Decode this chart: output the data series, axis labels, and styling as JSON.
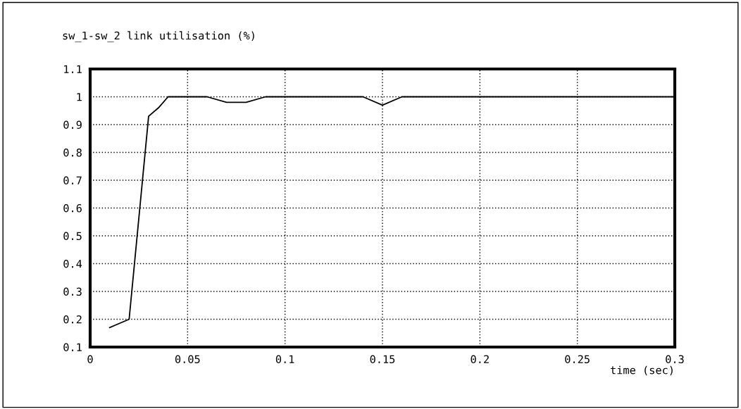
{
  "chart_data": {
    "type": "line",
    "title": "sw_1-sw_2 link utilisation (%)",
    "xlabel": "time (sec)",
    "x": [
      0.01,
      0.02,
      0.03,
      0.035,
      0.04,
      0.06,
      0.07,
      0.08,
      0.09,
      0.14,
      0.15,
      0.16,
      0.3
    ],
    "series": [
      {
        "color": "#000000",
        "values": [
          0.17,
          0.2,
          0.93,
          0.96,
          1.0,
          1.0,
          0.98,
          0.98,
          1.0,
          1.0,
          0.97,
          1.0,
          1.0
        ]
      }
    ],
    "xlim": [
      0,
      0.3
    ],
    "xticks": [
      0,
      0.05,
      0.1,
      0.15,
      0.2,
      0.25,
      0.3
    ],
    "ylim": [
      0.1,
      1.1
    ],
    "yticks": [
      0.1,
      0.2,
      0.3,
      0.4,
      0.5,
      0.6,
      0.7,
      0.8,
      0.9,
      1,
      1.1
    ],
    "grid": true,
    "legend": false,
    "marker": "none",
    "line_style": "solid"
  }
}
